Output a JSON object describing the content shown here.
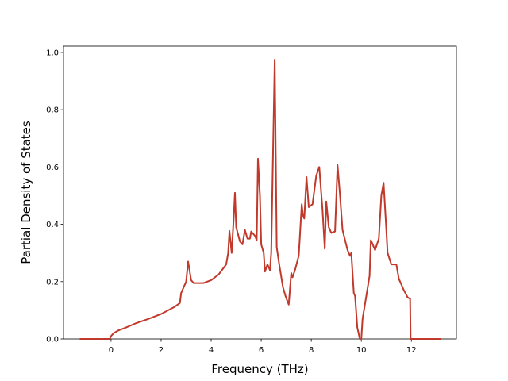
{
  "chart_data": {
    "type": "line",
    "xlabel": "Frequency (THz)",
    "ylabel": "Partial Density of States",
    "color": "#c0392b",
    "xlim": [
      -1.9,
      13.8
    ],
    "ylim": [
      0,
      1.022
    ],
    "xticks": [
      0,
      2,
      4,
      6,
      8,
      10,
      12
    ],
    "yticks": [
      {
        "value": 0,
        "label": "0.0"
      },
      {
        "value": 0.2,
        "label": "0.2"
      },
      {
        "value": 0.4,
        "label": "0.4"
      },
      {
        "value": 0.6,
        "label": "0.6"
      },
      {
        "value": 0.8,
        "label": "0.8"
      },
      {
        "value": 1.0,
        "label": "1.0"
      }
    ],
    "x": [
      -1.25,
      -0.05,
      0,
      0.1,
      0.3,
      0.6,
      1,
      1.5,
      2,
      2.5,
      2.75,
      2.8,
      3.0,
      3.08,
      3.2,
      3.3,
      3.7,
      4.0,
      4.3,
      4.6,
      4.68,
      4.73,
      4.82,
      4.9,
      4.95,
      5.0,
      5.15,
      5.25,
      5.35,
      5.45,
      5.55,
      5.6,
      5.75,
      5.82,
      5.87,
      5.95,
      6.0,
      6.1,
      6.15,
      6.25,
      6.35,
      6.4,
      6.54,
      6.62,
      6.72,
      6.87,
      6.97,
      7.1,
      7.2,
      7.25,
      7.35,
      7.5,
      7.62,
      7.67,
      7.72,
      7.81,
      7.9,
      8.05,
      8.2,
      8.32,
      8.45,
      8.54,
      8.6,
      8.7,
      8.8,
      8.95,
      9.05,
      9.15,
      9.25,
      9.45,
      9.55,
      9.6,
      9.7,
      9.75,
      9.84,
      9.94,
      10.0,
      10.05,
      10.2,
      10.33,
      10.38,
      10.55,
      10.7,
      10.8,
      10.89,
      11.0,
      11.05,
      11.2,
      11.4,
      11.5,
      11.7,
      11.85,
      11.95,
      11.97,
      13.2
    ],
    "values": [
      0,
      0,
      0.01,
      0.02,
      0.03,
      0.04,
      0.055,
      0.07,
      0.087,
      0.11,
      0.125,
      0.16,
      0.2,
      0.27,
      0.205,
      0.195,
      0.195,
      0.205,
      0.225,
      0.26,
      0.3,
      0.377,
      0.3,
      0.42,
      0.51,
      0.39,
      0.34,
      0.33,
      0.38,
      0.35,
      0.35,
      0.375,
      0.36,
      0.345,
      0.629,
      0.5,
      0.33,
      0.3,
      0.235,
      0.26,
      0.24,
      0.3,
      0.975,
      0.32,
      0.26,
      0.18,
      0.15,
      0.12,
      0.23,
      0.215,
      0.24,
      0.29,
      0.47,
      0.43,
      0.42,
      0.565,
      0.46,
      0.47,
      0.57,
      0.6,
      0.45,
      0.315,
      0.48,
      0.39,
      0.37,
      0.375,
      0.607,
      0.5,
      0.38,
      0.31,
      0.29,
      0.3,
      0.16,
      0.15,
      0.04,
      0,
      0,
      0.07,
      0.15,
      0.22,
      0.345,
      0.31,
      0.35,
      0.5,
      0.545,
      0.38,
      0.3,
      0.26,
      0.26,
      0.21,
      0.17,
      0.145,
      0.14,
      0,
      0
    ]
  }
}
